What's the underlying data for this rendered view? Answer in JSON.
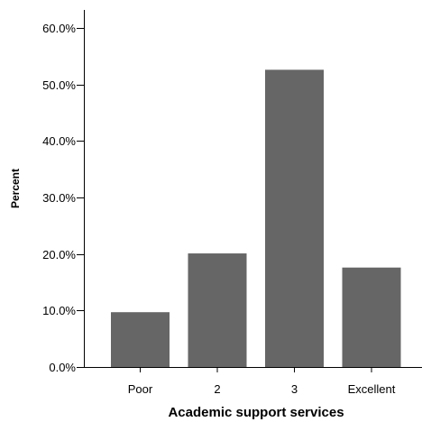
{
  "chart_data": {
    "type": "bar",
    "title": "",
    "xlabel": "Academic support services",
    "ylabel": "Percent",
    "categories": [
      "Poor",
      "2",
      "3",
      "Excellent"
    ],
    "values": [
      9.7,
      20.1,
      52.6,
      17.6
    ],
    "ylim": [
      0,
      60
    ],
    "yticks": [
      0,
      10,
      20,
      30,
      40,
      50,
      60
    ],
    "ytick_labels": [
      "0.0%",
      "10.0%",
      "20.0%",
      "30.0%",
      "40.0%",
      "50.0%",
      "60.0%"
    ],
    "grid": false,
    "legend": "none",
    "bar_color": "#666666"
  }
}
